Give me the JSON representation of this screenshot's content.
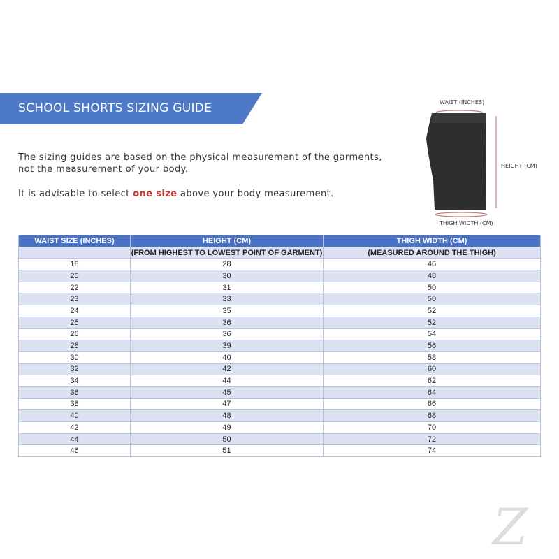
{
  "title": "SCHOOL SHORTS SIZING GUIDE",
  "intro_line1": "The sizing guides are based on the physical measurement of the garments,",
  "intro_line2": "not the measurement of your body.",
  "advice_pre": "It is advisable to select ",
  "advice_highlight": "one size",
  "advice_post": " above your body measurement.",
  "diagram": {
    "waist": "WAIST (INCHES)",
    "height": "HEIGHT (CM)",
    "thigh": "THIGH WIDTH (CM)"
  },
  "table": {
    "headers": [
      "WAIST SIZE (INCHES)",
      "HEIGHT (CM)",
      "THIGH WIDTH (CM)"
    ],
    "subheaders": [
      "",
      "(FROM HIGHEST TO LOWEST POINT OF GARMENT)",
      "(MEASURED AROUND THE THIGH)"
    ],
    "rows": [
      [
        "18",
        "28",
        "46"
      ],
      [
        "20",
        "30",
        "48"
      ],
      [
        "22",
        "31",
        "50"
      ],
      [
        "23",
        "33",
        "50"
      ],
      [
        "24",
        "35",
        "52"
      ],
      [
        "25",
        "36",
        "52"
      ],
      [
        "26",
        "36",
        "54"
      ],
      [
        "28",
        "39",
        "56"
      ],
      [
        "30",
        "40",
        "58"
      ],
      [
        "32",
        "42",
        "60"
      ],
      [
        "34",
        "44",
        "62"
      ],
      [
        "36",
        "45",
        "64"
      ],
      [
        "38",
        "47",
        "66"
      ],
      [
        "40",
        "48",
        "68"
      ],
      [
        "42",
        "49",
        "70"
      ],
      [
        "44",
        "50",
        "72"
      ],
      [
        "46",
        "51",
        "74"
      ]
    ]
  },
  "colors": {
    "accent": "#4d79c6",
    "highlight": "#c8322e",
    "row_alt": "#dce2f2"
  },
  "logo": "Z"
}
